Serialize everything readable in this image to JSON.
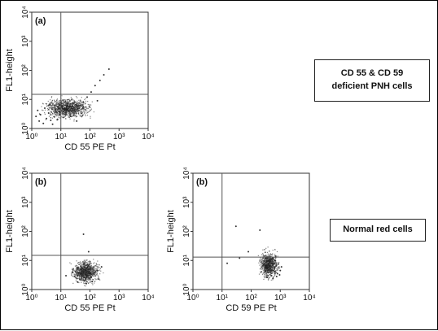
{
  "chart_data": [
    {
      "type": "scatter",
      "panel_label": "(a)",
      "xlabel": "CD 55 PE Pt",
      "ylabel": "FL1-height",
      "x_scale": "log",
      "y_scale": "log",
      "xlim": [
        1,
        10000
      ],
      "ylim": [
        1,
        10000
      ],
      "x_ticks": [
        "10⁰",
        "10¹",
        "10²",
        "10³",
        "10⁴"
      ],
      "y_ticks": [
        "10⁰",
        "10¹",
        "10²",
        "10³",
        "10⁴"
      ],
      "quadrant_gate": {
        "x": 10,
        "y": 15
      },
      "series": [
        {
          "points": [
            [
              1.8,
              1.8
            ],
            [
              2.5,
              1.5
            ],
            [
              3.2,
              2.2
            ],
            [
              4.5,
              1.9
            ],
            [
              6,
              2.5
            ],
            [
              2,
              3
            ],
            [
              1.4,
              2.6
            ],
            [
              3.8,
              3.4
            ],
            [
              5.2,
              1.4
            ],
            [
              7.5,
              2
            ],
            [
              9,
              3
            ],
            [
              12,
              2.4
            ],
            [
              15,
              3.6
            ],
            [
              22,
              2.6
            ],
            [
              30,
              4.5
            ],
            [
              45,
              6
            ],
            [
              60,
              8
            ],
            [
              80,
              12
            ],
            [
              110,
              18
            ],
            [
              150,
              30
            ],
            [
              220,
              45
            ],
            [
              300,
              70
            ],
            [
              450,
              110
            ],
            [
              180,
              9
            ],
            [
              95,
              5.5
            ],
            [
              35,
              1.8
            ],
            [
              2.8,
              5
            ],
            [
              1.6,
              4.2
            ],
            [
              4,
              6.5
            ],
            [
              8.5,
              7
            ]
          ]
        }
      ]
    },
    {
      "type": "scatter",
      "panel_label": "(b)",
      "xlabel": "CD 55 PE Pt",
      "ylabel": "FL1-height",
      "x_scale": "log",
      "y_scale": "log",
      "xlim": [
        1,
        10000
      ],
      "ylim": [
        1,
        10000
      ],
      "x_ticks": [
        "10⁰",
        "10¹",
        "10²",
        "10³",
        "10⁴"
      ],
      "y_ticks": [
        "10⁰",
        "10¹",
        "10²",
        "10³",
        "10⁴"
      ],
      "quadrant_gate": {
        "x": 10,
        "y": 15
      },
      "series": [
        {
          "points": [
            [
              45,
              2.2
            ],
            [
              55,
              3
            ],
            [
              70,
              2.5
            ],
            [
              38,
              1.8
            ],
            [
              85,
              3.5
            ],
            [
              60,
              4.5
            ],
            [
              30,
              2.8
            ],
            [
              110,
              2.6
            ],
            [
              50,
              6
            ],
            [
              75,
              1.6
            ],
            [
              95,
              5
            ],
            [
              140,
              3.8
            ],
            [
              40,
              3.6
            ],
            [
              65,
              2
            ],
            [
              120,
              1.9
            ],
            [
              25,
              4
            ],
            [
              180,
              4.5
            ],
            [
              80,
              7
            ],
            [
              35,
              5.5
            ],
            [
              100,
              9
            ],
            [
              60,
              80
            ],
            [
              15,
              3
            ],
            [
              250,
              6
            ],
            [
              90,
              20
            ],
            [
              200,
              2.3
            ]
          ]
        }
      ]
    },
    {
      "type": "scatter",
      "panel_label": "(b)",
      "xlabel": "CD 59 PE Pt",
      "ylabel": "FL1-height",
      "x_scale": "log",
      "y_scale": "log",
      "xlim": [
        1,
        10000
      ],
      "ylim": [
        1,
        10000
      ],
      "x_ticks": [
        "10⁰",
        "10¹",
        "10²",
        "10³",
        "10⁴"
      ],
      "y_ticks": [
        "10⁰",
        "10¹",
        "10²",
        "10³",
        "10⁴"
      ],
      "quadrant_gate": {
        "x": 10,
        "y": 13
      },
      "series": [
        {
          "points": [
            [
              500,
              3
            ],
            [
              650,
              4.2
            ],
            [
              800,
              3.5
            ],
            [
              420,
              5
            ],
            [
              720,
              6.5
            ],
            [
              560,
              2.4
            ],
            [
              900,
              5.5
            ],
            [
              380,
              3.8
            ],
            [
              600,
              8
            ],
            [
              750,
              2.8
            ],
            [
              1000,
              4.5
            ],
            [
              480,
              6.5
            ],
            [
              680,
              10
            ],
            [
              850,
              7.5
            ],
            [
              350,
              2.6
            ],
            [
              950,
              3.2
            ],
            [
              550,
              12
            ],
            [
              700,
              14
            ],
            [
              450,
              8.5
            ],
            [
              1100,
              6
            ],
            [
              15,
              8
            ],
            [
              40,
              12
            ],
            [
              80,
              20
            ],
            [
              30,
              150
            ],
            [
              200,
              110
            ]
          ]
        }
      ]
    }
  ],
  "callouts": {
    "pnh": "CD 55 & CD 59 deficient PNH cells",
    "normal": "Normal red cells"
  }
}
